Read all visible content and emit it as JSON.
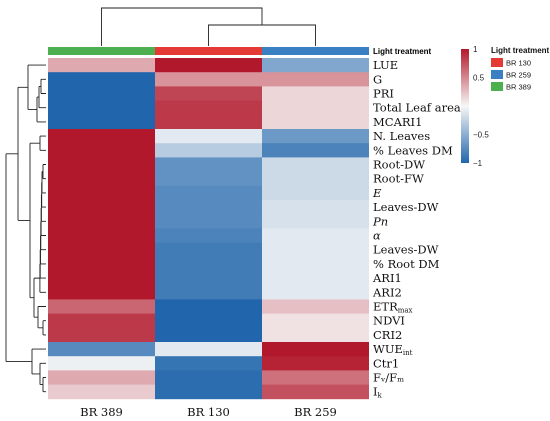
{
  "chart_data": {
    "type": "heatmap",
    "columns": [
      "BR 389",
      "BR 130",
      "BR 259"
    ],
    "column_treatment_colors": [
      "#4caf50",
      "#e53935",
      "#3a7fc1"
    ],
    "treatment_bar_label": "Light treatment",
    "rows": [
      {
        "label": "LUE",
        "sub": "",
        "values": [
          0.35,
          1.0,
          -0.55
        ]
      },
      {
        "label": "G",
        "sub": "",
        "values": [
          -1.0,
          0.45,
          0.45
        ]
      },
      {
        "label": "PRI",
        "sub": "",
        "values": [
          -1.0,
          0.8,
          0.15
        ]
      },
      {
        "label": "Total Leaf area",
        "sub": "",
        "values": [
          -1.0,
          0.85,
          0.15
        ]
      },
      {
        "label": "MCARI1",
        "sub": "",
        "values": [
          -1.0,
          0.85,
          0.15
        ]
      },
      {
        "label": "N. Leaves",
        "sub": "",
        "values": [
          1.0,
          -0.1,
          -0.65
        ]
      },
      {
        "label": "% Leaves DM",
        "sub": "",
        "values": [
          1.0,
          -0.3,
          -0.8
        ]
      },
      {
        "label": "Root-DW",
        "sub": "",
        "values": [
          1.0,
          -0.7,
          -0.2
        ]
      },
      {
        "label": "Root-FW",
        "sub": "",
        "values": [
          1.0,
          -0.7,
          -0.2
        ]
      },
      {
        "label": "E",
        "sub": "",
        "italic": true,
        "values": [
          1.0,
          -0.75,
          -0.2
        ]
      },
      {
        "label": "Leaves-DW",
        "sub": "",
        "values": [
          1.0,
          -0.75,
          -0.15
        ]
      },
      {
        "label": "Pn",
        "sub": "",
        "italic": true,
        "values": [
          1.0,
          -0.75,
          -0.15
        ]
      },
      {
        "label": "α",
        "sub": "",
        "italic": true,
        "values": [
          1.0,
          -0.8,
          -0.1
        ]
      },
      {
        "label": "Leaves-DW",
        "sub": "",
        "values": [
          1.0,
          -0.85,
          -0.1
        ]
      },
      {
        "label": "% Root DM",
        "sub": "",
        "values": [
          1.0,
          -0.85,
          -0.1
        ]
      },
      {
        "label": "ARI1",
        "sub": "",
        "values": [
          1.0,
          -0.85,
          -0.1
        ]
      },
      {
        "label": "ARI2",
        "sub": "",
        "values": [
          1.0,
          -0.85,
          -0.1
        ]
      },
      {
        "label": "ETR",
        "sub": "max",
        "values": [
          0.65,
          -1.0,
          0.25
        ]
      },
      {
        "label": "NDVI",
        "sub": "",
        "values": [
          0.85,
          -1.0,
          0.1
        ]
      },
      {
        "label": "CRI2",
        "sub": "",
        "values": [
          0.85,
          -1.0,
          0.1
        ]
      },
      {
        "label": "WUE",
        "sub": "int",
        "values": [
          -0.75,
          -0.1,
          1.0
        ]
      },
      {
        "label": "Ctr1",
        "sub": "",
        "values": [
          -0.05,
          -0.9,
          0.95
        ]
      },
      {
        "label": "Fᵥ/Fₘ",
        "sub": "",
        "values": [
          0.35,
          -0.95,
          0.6
        ]
      },
      {
        "label": "I",
        "sub": "k",
        "values": [
          0.2,
          -0.95,
          0.75
        ]
      }
    ],
    "colorbar": {
      "min": -1,
      "max": 1,
      "ticks": [
        1,
        0.5,
        0,
        -0.5,
        -1
      ],
      "tick_labels": [
        "1",
        "0.5",
        "",
        "−0.5",
        "−1"
      ],
      "low_color": "#2166ac",
      "mid_color": "#f7f7f7",
      "high_color": "#b2182b"
    },
    "legend": {
      "title": "Light treatment",
      "entries": [
        {
          "label": "BR 130",
          "color": "#e53935"
        },
        {
          "label": "BR 259",
          "color": "#3a7fc1"
        },
        {
          "label": "BR 389",
          "color": "#4caf50"
        }
      ]
    }
  }
}
